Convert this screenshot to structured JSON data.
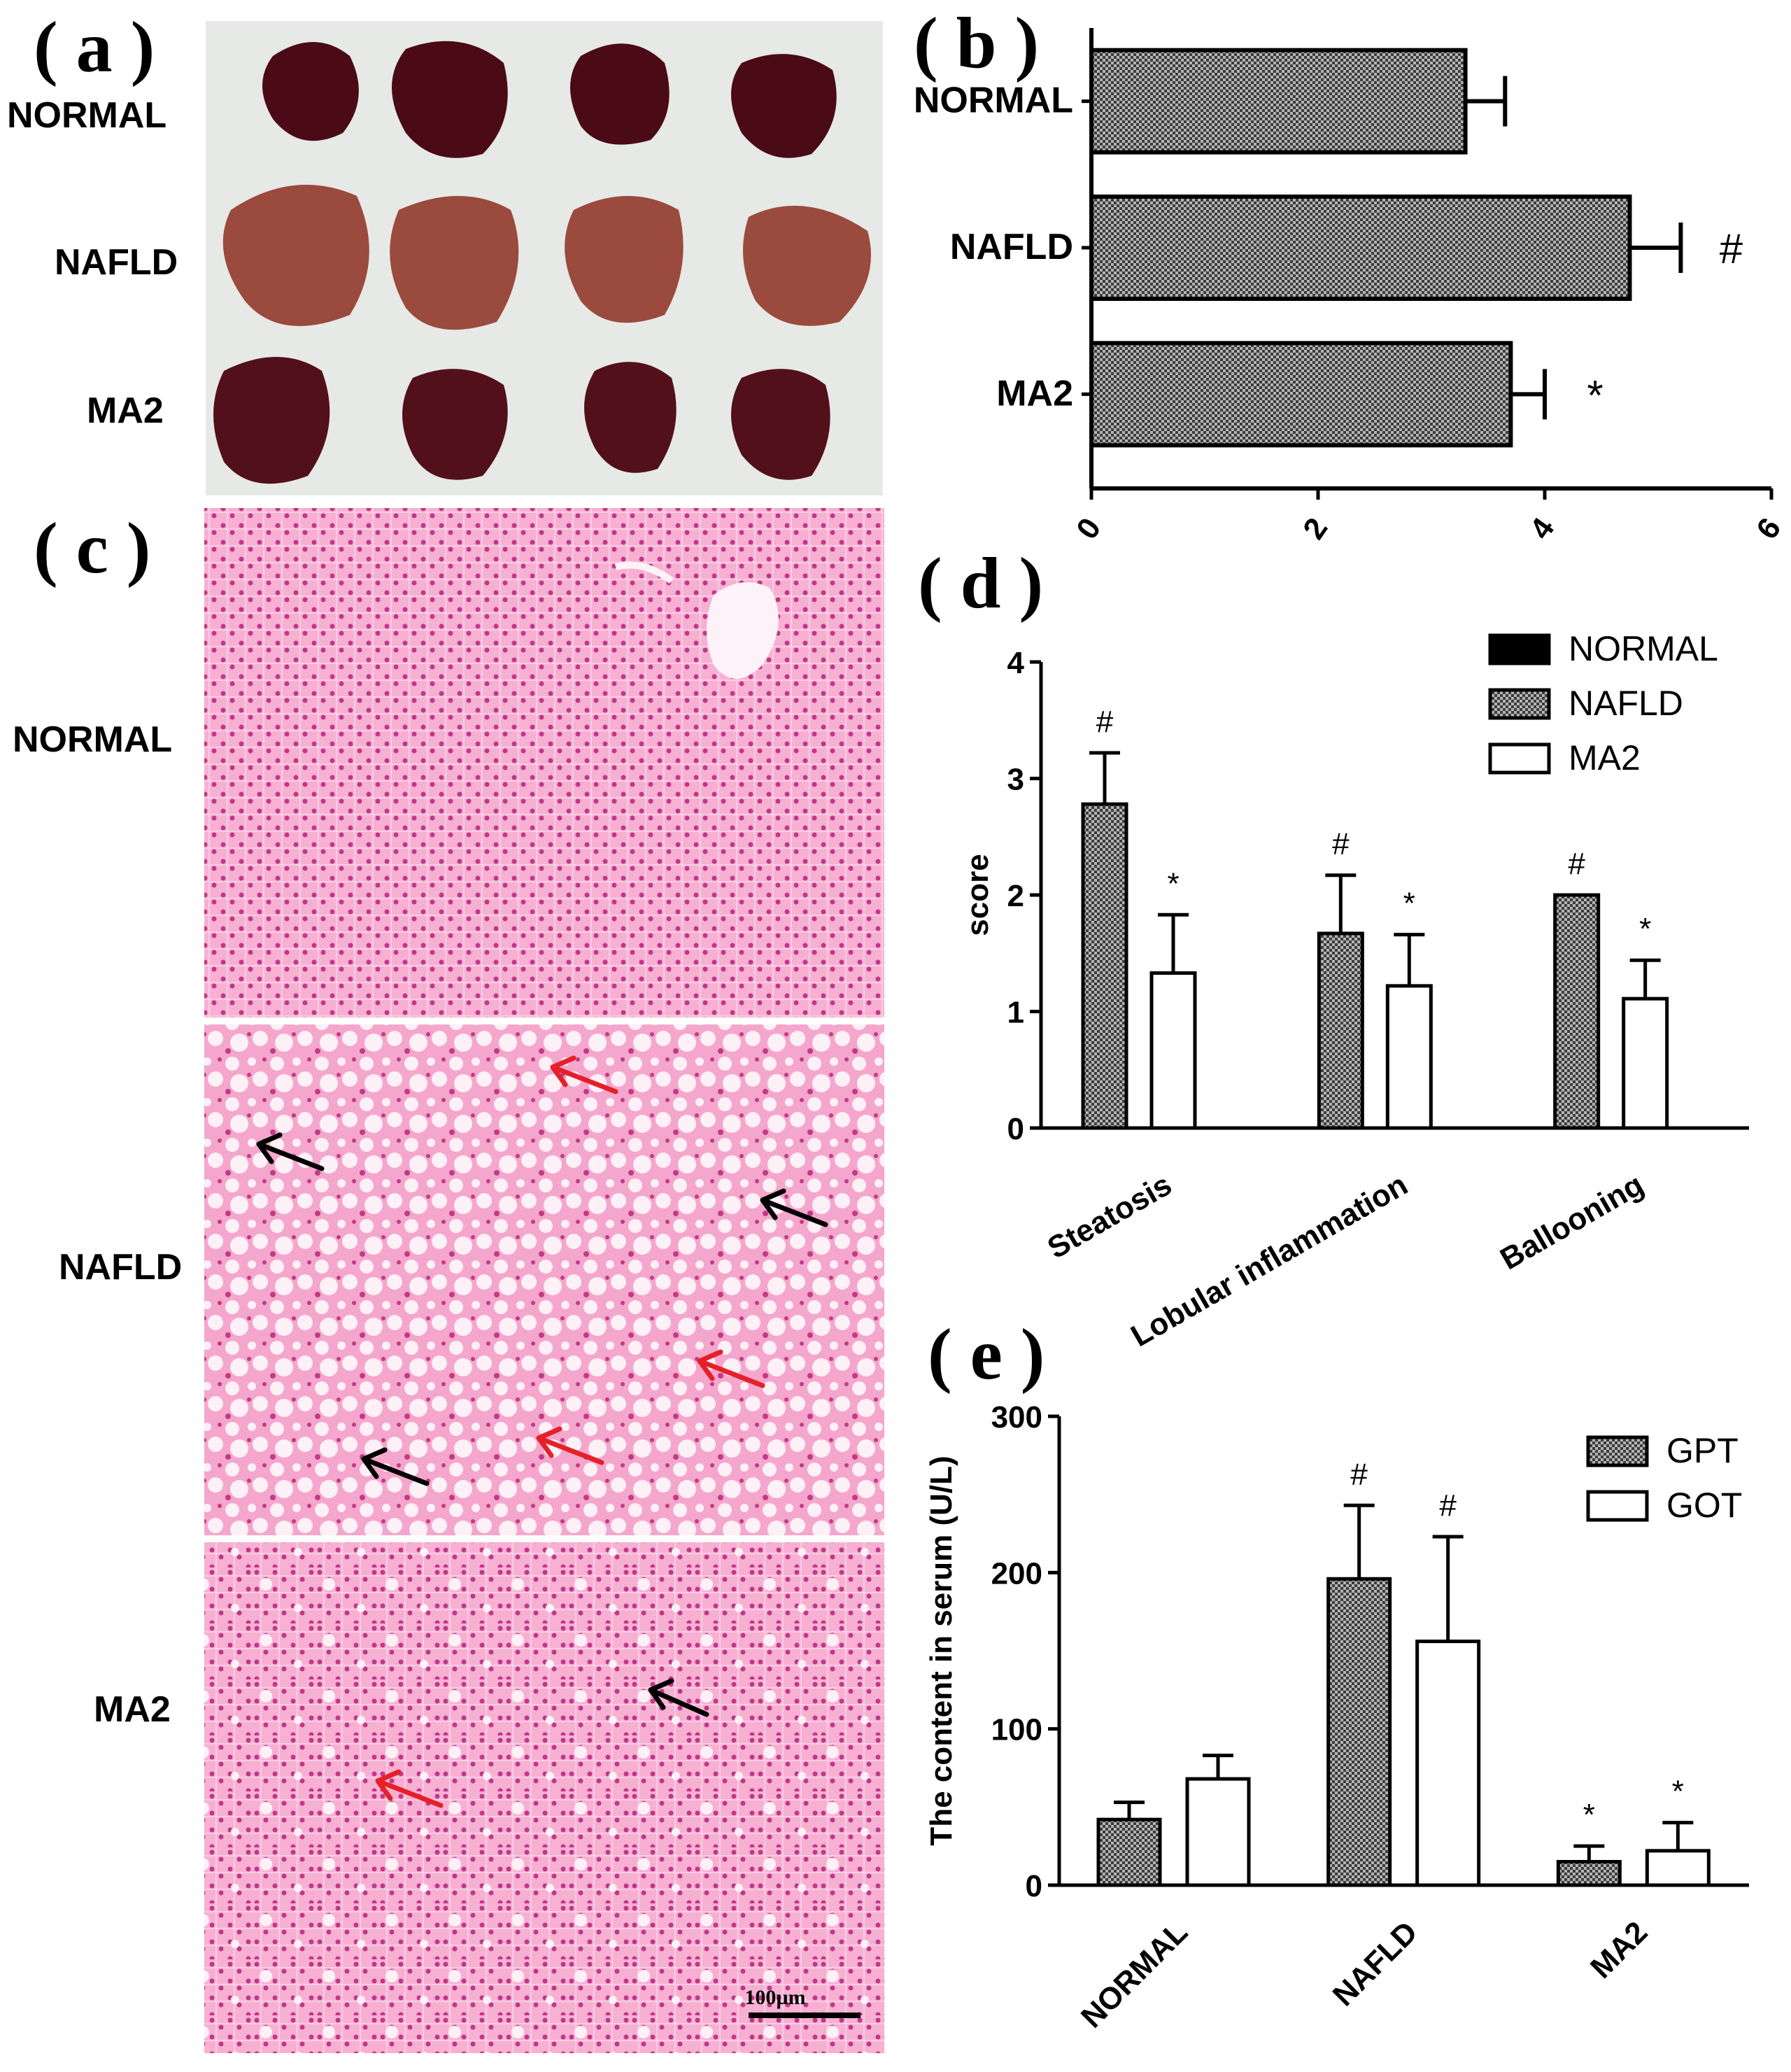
{
  "panels": {
    "a": {
      "letter": "( a )",
      "rows": [
        "NORMAL",
        "NAFLD",
        "MA2"
      ]
    },
    "c": {
      "letter": "( c )",
      "rows": [
        "NORMAL",
        "NAFLD",
        "MA2"
      ],
      "scale_bar": "100µm"
    }
  },
  "colors": {
    "bar_dark": "#000000",
    "bar_hatched": "#8c8c8c",
    "bar_open": "#ffffff",
    "tissue_pink": "#f59ac8",
    "tissue_bg": "#fbe3ef",
    "arrow_red": "#e4202a",
    "arrow_black": "#000000",
    "liver_dark": "#4a0a14",
    "liver_light": "#9a4a3e",
    "photo_bg": "#e8ebe8"
  },
  "chart_data": [
    {
      "panel": "b",
      "letter": "( b )",
      "type": "bar",
      "orientation": "horizontal",
      "categories": [
        "NORMAL",
        "NAFLD",
        "MA2"
      ],
      "values": [
        3.3,
        4.75,
        3.7
      ],
      "errors": [
        0.35,
        0.45,
        0.3
      ],
      "significance": [
        "",
        "#",
        "*"
      ],
      "xlim": [
        0,
        6
      ],
      "xticks": [
        "0",
        "2",
        "4",
        "6"
      ]
    },
    {
      "panel": "d",
      "letter": "( d )",
      "type": "bar",
      "categories": [
        "Steatosis",
        "Lobular inflammation",
        "Ballooning"
      ],
      "ylabel": "score",
      "ylim": [
        0,
        4
      ],
      "yticks": [
        "0",
        "1",
        "2",
        "3",
        "4"
      ],
      "legend": [
        "NORMAL",
        "NAFLD",
        "MA2"
      ],
      "series": [
        {
          "name": "NORMAL",
          "values": [
            0,
            0,
            0
          ],
          "errors": [
            0,
            0,
            0
          ],
          "significance": [
            "",
            "",
            ""
          ]
        },
        {
          "name": "NAFLD",
          "values": [
            2.78,
            1.67,
            2.0
          ],
          "errors": [
            0.44,
            0.5,
            0
          ],
          "significance": [
            "#",
            "#",
            "#"
          ]
        },
        {
          "name": "MA2",
          "values": [
            1.33,
            1.22,
            1.11
          ],
          "errors": [
            0.5,
            0.44,
            0.33
          ],
          "significance": [
            "*",
            "*",
            "*"
          ]
        }
      ]
    },
    {
      "panel": "e",
      "letter": "( e )",
      "type": "bar",
      "categories": [
        "NORMAL",
        "NAFLD",
        "MA2"
      ],
      "ylabel": "The content in serum (U/L)",
      "ylim": [
        0,
        300
      ],
      "yticks": [
        "0",
        "100",
        "200",
        "300"
      ],
      "legend": [
        "GPT",
        "GOT"
      ],
      "series": [
        {
          "name": "GPT",
          "values": [
            42,
            196,
            15
          ],
          "errors": [
            11,
            47,
            10
          ],
          "significance": [
            "",
            "#",
            "*"
          ]
        },
        {
          "name": "GOT",
          "values": [
            68,
            156,
            22
          ],
          "errors": [
            15,
            67,
            18
          ],
          "significance": [
            "",
            "#",
            "*"
          ]
        }
      ]
    }
  ]
}
